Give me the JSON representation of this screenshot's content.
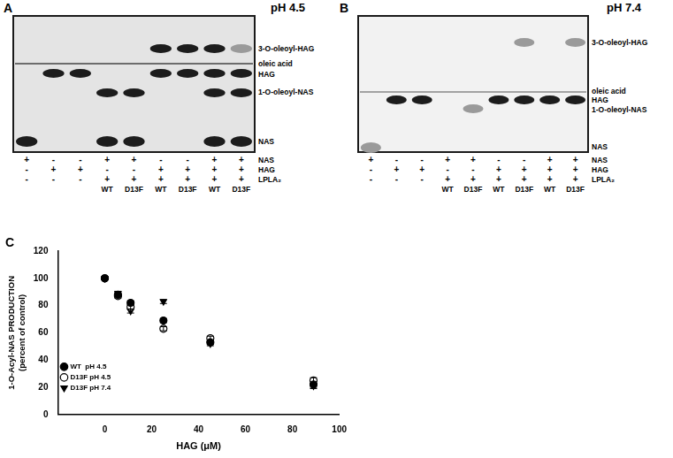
{
  "panels": [
    {
      "letter": "A",
      "title": "pH 4.5",
      "band_labels": [
        "3-O-oleoyl-HAG",
        "oleic acid",
        "HAG",
        "1-O-oleoyl-NAS",
        "NAS"
      ],
      "lines": [
        "oleic acid"
      ],
      "row_labels": [
        "NAS",
        "HAG",
        "LPLA₂"
      ],
      "lanes": [
        {
          "marks": [
            "+",
            "-",
            "-"
          ],
          "enzyme": null,
          "bands": [
            "NAS"
          ],
          "faint_bands": []
        },
        {
          "marks": [
            "-",
            "+",
            "-"
          ],
          "enzyme": null,
          "bands": [
            "HAG"
          ],
          "faint_bands": []
        },
        {
          "marks": [
            "-",
            "+",
            "-"
          ],
          "enzyme": null,
          "bands": [
            "HAG"
          ],
          "faint_bands": []
        },
        {
          "marks": [
            "+",
            "-",
            "+"
          ],
          "enzyme": "WT",
          "bands": [
            "1-O-oleoyl-NAS",
            "NAS"
          ],
          "faint_bands": []
        },
        {
          "marks": [
            "+",
            "-",
            "+"
          ],
          "enzyme": "D13F",
          "bands": [
            "1-O-oleoyl-NAS",
            "NAS"
          ],
          "faint_bands": []
        },
        {
          "marks": [
            "-",
            "+",
            "+"
          ],
          "enzyme": "WT",
          "bands": [
            "3-O-oleoyl-HAG",
            "HAG"
          ],
          "faint_bands": []
        },
        {
          "marks": [
            "-",
            "+",
            "+"
          ],
          "enzyme": "D13F",
          "bands": [
            "3-O-oleoyl-HAG",
            "HAG"
          ],
          "faint_bands": []
        },
        {
          "marks": [
            "+",
            "+",
            "+"
          ],
          "enzyme": "WT",
          "bands": [
            "3-O-oleoyl-HAG",
            "HAG",
            "1-O-oleoyl-NAS",
            "NAS"
          ],
          "faint_bands": []
        },
        {
          "marks": [
            "+",
            "+",
            "+"
          ],
          "enzyme": "D13F",
          "bands": [
            "HAG",
            "1-O-oleoyl-NAS",
            "NAS"
          ],
          "faint_bands": [
            "3-O-oleoyl-HAG"
          ]
        }
      ]
    },
    {
      "letter": "B",
      "title": "pH 7.4",
      "band_labels": [
        "3-O-oleoyl-HAG",
        "oleic acid",
        "HAG",
        "1-O-oleoyl-NAS",
        "NAS"
      ],
      "lines": [
        "oleic acid"
      ],
      "row_labels": [
        "NAS",
        "HAG",
        "LPLA₂"
      ],
      "lanes": [
        {
          "marks": [
            "+",
            "-",
            "-"
          ],
          "enzyme": null,
          "bands": [],
          "faint_bands": [
            "NAS"
          ]
        },
        {
          "marks": [
            "-",
            "+",
            "-"
          ],
          "enzyme": null,
          "bands": [
            "HAG"
          ],
          "faint_bands": []
        },
        {
          "marks": [
            "-",
            "+",
            "-"
          ],
          "enzyme": null,
          "bands": [
            "HAG"
          ],
          "faint_bands": []
        },
        {
          "marks": [
            "+",
            "-",
            "+"
          ],
          "enzyme": "WT",
          "bands": [],
          "faint_bands": []
        },
        {
          "marks": [
            "+",
            "-",
            "+"
          ],
          "enzyme": "D13F",
          "bands": [],
          "faint_bands": [
            "1-O-oleoyl-NAS"
          ]
        },
        {
          "marks": [
            "-",
            "+",
            "+"
          ],
          "enzyme": "WT",
          "bands": [
            "HAG"
          ],
          "faint_bands": []
        },
        {
          "marks": [
            "-",
            "+",
            "+"
          ],
          "enzyme": "D13F",
          "bands": [
            "HAG"
          ],
          "faint_bands": [
            "3-O-oleoyl-HAG"
          ]
        },
        {
          "marks": [
            "+",
            "+",
            "+"
          ],
          "enzyme": "WT",
          "bands": [
            "HAG"
          ],
          "faint_bands": []
        },
        {
          "marks": [
            "+",
            "+",
            "+"
          ],
          "enzyme": "D13F",
          "bands": [
            "HAG"
          ],
          "faint_bands": [
            "3-O-oleoyl-HAG"
          ]
        }
      ]
    }
  ],
  "chart_data": {
    "letter": "C",
    "type": "scatter",
    "xlabel": "HAG (μM)",
    "ylabel": [
      "1-O-Acyl-NAS PRODUCTION",
      "(percent of control)"
    ],
    "x": [
      0,
      5.6,
      11,
      25,
      45,
      89
    ],
    "series": [
      {
        "name": "WT  pH 4.5",
        "color": "#000000",
        "marker": "circle",
        "values": [
          100,
          88,
          82,
          69,
          53,
          22
        ],
        "errors": [
          0.5,
          1.5,
          1.5,
          1.5,
          1.5,
          2
        ]
      },
      {
        "name": "D13F pH 4.5",
        "color": "#000000",
        "marker": "circle_open",
        "values": [
          100,
          87,
          79,
          63,
          56,
          25
        ],
        "errors": [
          0.5,
          1.5,
          1.5,
          1.5,
          1.5,
          2
        ]
      },
      {
        "name": "D13F pH 7.4",
        "color": "#000000",
        "marker": "triangle_down",
        "values": [
          100,
          89,
          76,
          83,
          52,
          21
        ],
        "errors": [
          0.5,
          1.5,
          1.5,
          1.5,
          1.5,
          2
        ]
      }
    ],
    "xlim": [
      -20,
      100
    ],
    "xticks": [
      0,
      20,
      40,
      60,
      80,
      100
    ],
    "ylim": [
      0,
      120
    ],
    "yticks": [
      0,
      20,
      40,
      60,
      80,
      100,
      120
    ],
    "grid": false,
    "legend": "upper right"
  }
}
